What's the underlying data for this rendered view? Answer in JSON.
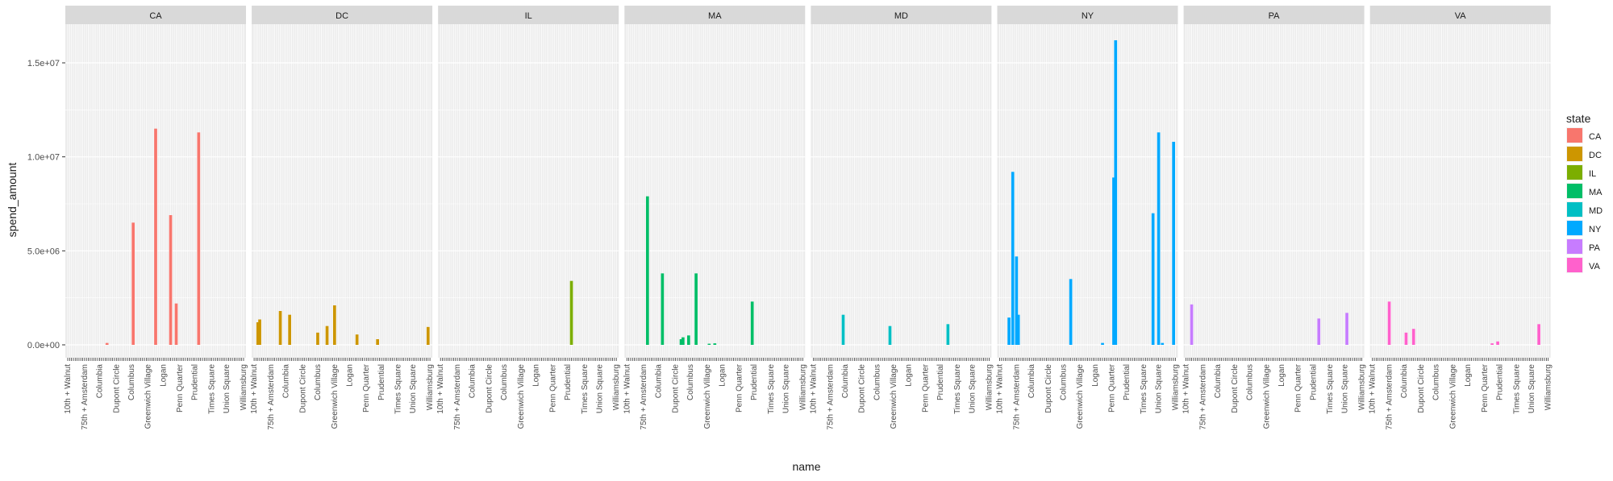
{
  "chart_data": {
    "type": "bar",
    "faceted_by": "state",
    "xlabel": "name",
    "ylabel": "spend_amount",
    "ylim": [
      0,
      16500000
    ],
    "yticks": [
      0,
      5000000,
      10000000,
      15000000
    ],
    "ytick_labels": [
      "0.0e+00",
      "5.0e+06",
      "1.0e+07",
      "1.5e+07"
    ],
    "grid": true,
    "background": "gray panels with white grid",
    "x_category_count": 95,
    "x_tick_labels_legible": [
      "10th + Walnut",
      "75th + Amsterdam",
      "Columbia",
      "Dupont Circle",
      "Columbus",
      "Greenwich Village",
      "Logan",
      "Penn Quarter",
      "Prudential",
      "Times Square",
      "Union Square",
      "Williamsburg"
    ],
    "legend": {
      "title": "state",
      "placement": "right",
      "entries": [
        {
          "label": "CA",
          "color": "#F8766D"
        },
        {
          "label": "DC",
          "color": "#CD9600"
        },
        {
          "label": "IL",
          "color": "#7CAE00"
        },
        {
          "label": "MA",
          "color": "#00BE67"
        },
        {
          "label": "MD",
          "color": "#00BFC4"
        },
        {
          "label": "NY",
          "color": "#00A9FF"
        },
        {
          "label": "PA",
          "color": "#C77CFF"
        },
        {
          "label": "VA",
          "color": "#FF61CC"
        }
      ]
    },
    "facets": [
      {
        "state": "CA",
        "bars": [
          [
            21,
            100000
          ],
          [
            35,
            6500000
          ],
          [
            47,
            11500000
          ],
          [
            55,
            6900000
          ],
          [
            58,
            2200000
          ],
          [
            70,
            11300000
          ]
        ]
      },
      {
        "state": "DC",
        "bars": [
          [
            2,
            1200000
          ],
          [
            3,
            1350000
          ],
          [
            14,
            1800000
          ],
          [
            19,
            1600000
          ],
          [
            34,
            650000
          ],
          [
            39,
            1000000
          ],
          [
            43,
            2100000
          ],
          [
            55,
            550000
          ],
          [
            66,
            300000
          ],
          [
            93,
            950000
          ]
        ]
      },
      {
        "state": "IL",
        "bars": [
          [
            70,
            3400000
          ]
        ]
      },
      {
        "state": "MA",
        "bars": [
          [
            11,
            7900000
          ],
          [
            19,
            3800000
          ],
          [
            29,
            300000
          ],
          [
            30,
            400000
          ],
          [
            33,
            500000
          ],
          [
            37,
            3800000
          ],
          [
            44,
            60000
          ],
          [
            47,
            80000
          ],
          [
            67,
            2300000
          ]
        ]
      },
      {
        "state": "MD",
        "bars": [
          [
            16,
            1600000
          ],
          [
            41,
            1000000
          ],
          [
            72,
            1100000
          ]
        ]
      },
      {
        "state": "NY",
        "bars": [
          [
            5,
            1450000
          ],
          [
            7,
            9200000
          ],
          [
            9,
            4700000
          ],
          [
            10,
            1600000
          ],
          [
            38,
            3500000
          ],
          [
            55,
            100000
          ],
          [
            61,
            8900000
          ],
          [
            62,
            16200000
          ],
          [
            82,
            7000000
          ],
          [
            85,
            11300000
          ],
          [
            87,
            100000
          ],
          [
            93,
            10800000
          ]
        ]
      },
      {
        "state": "PA",
        "bars": [
          [
            3,
            2150000
          ],
          [
            71,
            1400000
          ],
          [
            86,
            1700000
          ]
        ]
      },
      {
        "state": "VA",
        "bars": [
          [
            9,
            2300000
          ],
          [
            18,
            650000
          ],
          [
            22,
            850000
          ],
          [
            64,
            80000
          ],
          [
            67,
            180000
          ],
          [
            89,
            1100000
          ]
        ]
      }
    ]
  }
}
